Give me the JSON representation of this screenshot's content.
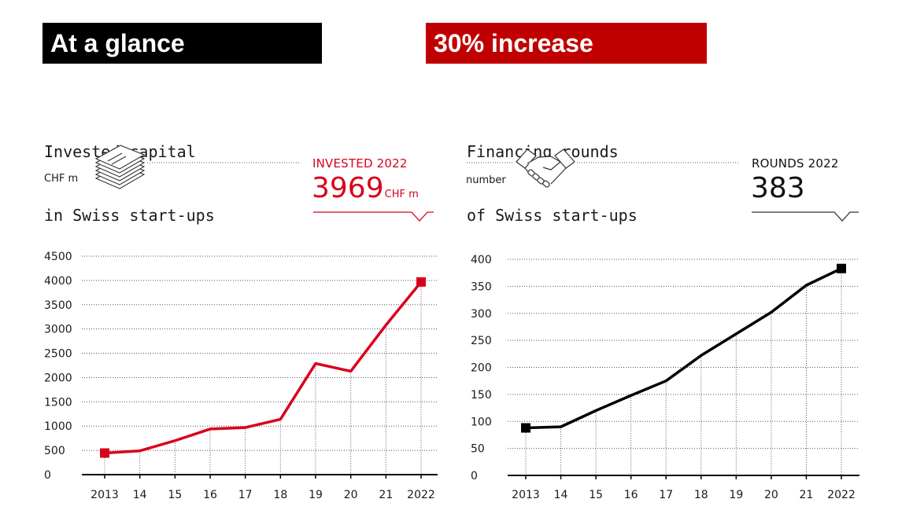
{
  "banners": {
    "left": "At a glance",
    "right": "30% increase"
  },
  "colors": {
    "banner_black": "#000000",
    "banner_red": "#c00000",
    "line_red": "#d9001b",
    "line_black": "#000000"
  },
  "icons": {
    "left": "banknote-stack-icon",
    "right": "handshake-icon"
  },
  "chart_data": [
    {
      "type": "line",
      "title_line1": "Invested capital",
      "title_line2": "in Swiss start-ups",
      "unit_label": "CHF m",
      "kpi_label": "INVESTED 2022",
      "kpi_value": "3969",
      "kpi_unit": "CHF m",
      "categories": [
        "2013",
        "14",
        "15",
        "16",
        "17",
        "18",
        "19",
        "20",
        "21",
        "2022"
      ],
      "yticks": [
        "0",
        "500",
        "1000",
        "1500",
        "2000",
        "2500",
        "3000",
        "3500",
        "4000",
        "4500"
      ],
      "ylim": [
        0,
        4500
      ],
      "grid": true,
      "series": [
        {
          "values": [
            445,
            490,
            700,
            940,
            970,
            1140,
            2290,
            2130,
            3080,
            3969
          ]
        }
      ]
    },
    {
      "type": "line",
      "title_line1": "Financing rounds",
      "title_line2": "of Swiss start-ups",
      "unit_label": "number",
      "kpi_label": "ROUNDS 2022",
      "kpi_value": "383",
      "categories": [
        "2013",
        "14",
        "15",
        "16",
        "17",
        "18",
        "19",
        "20",
        "21",
        "2022"
      ],
      "yticks": [
        "0",
        "50",
        "100",
        "150",
        "200",
        "250",
        "300",
        "350",
        "400"
      ],
      "ylim": [
        0,
        400
      ],
      "grid": true,
      "series": [
        {
          "values": [
            88,
            90,
            120,
            148,
            175,
            222,
            262,
            302,
            352,
            383
          ]
        }
      ]
    }
  ]
}
